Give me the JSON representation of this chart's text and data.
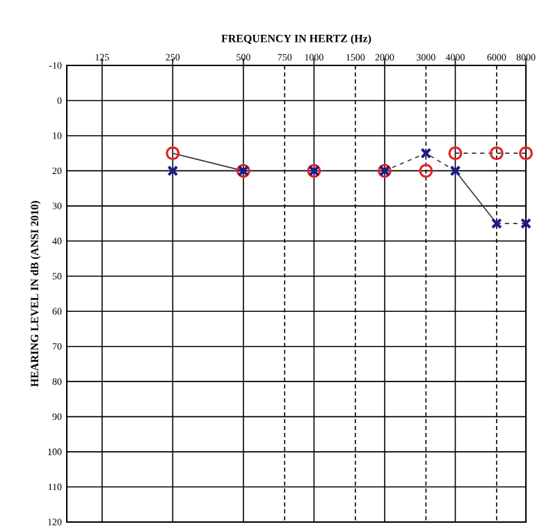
{
  "chart_data": {
    "type": "scatter",
    "xlabel": "FREQUENCY IN HERTZ (Hz)",
    "ylabel": "HEARING LEVEL IN dB (ANSI 2010)",
    "log": "x",
    "grid": true,
    "xlim": [
      88.4,
      8000
    ],
    "xticks": [
      125,
      250,
      500,
      750,
      1000,
      1500,
      2000,
      3000,
      4000,
      6000,
      8000
    ],
    "ylim": [
      120,
      -10
    ],
    "yticks": [
      -10,
      0,
      10,
      20,
      30,
      40,
      50,
      60,
      70,
      80,
      90,
      100,
      110,
      120
    ],
    "series": [
      {
        "color": "#e02424",
        "marker": "circle",
        "x": [
          250,
          500,
          1000,
          2000,
          3000,
          4000,
          6000,
          8000
        ],
        "values": [
          15,
          20,
          20,
          20,
          20,
          15,
          15,
          15
        ]
      },
      {
        "color": "#1c1c8c",
        "marker": "cross",
        "x": [
          250,
          500,
          1000,
          2000,
          3000,
          4000,
          6000,
          8000
        ],
        "values": [
          20,
          20,
          20,
          20,
          15,
          20,
          35,
          35
        ]
      },
      {
        "type": "line",
        "color": "#333333",
        "marker": "none",
        "line_style": "solid",
        "x": [
          250,
          500
        ],
        "values": [
          15,
          20
        ]
      },
      {
        "type": "line",
        "color": "#333333",
        "marker": "none",
        "line_style": "dashed",
        "x": [
          4000,
          6000,
          8000
        ],
        "values": [
          15,
          15,
          15
        ]
      },
      {
        "type": "line",
        "color": "#333333",
        "marker": "none",
        "line_style": "dashed",
        "x": [
          2000,
          3000,
          4000
        ],
        "values": [
          20,
          15,
          20
        ]
      },
      {
        "type": "line",
        "color": "#333333",
        "marker": "none",
        "line_style": "solid",
        "x": [
          4000,
          6000
        ],
        "values": [
          20,
          35
        ]
      },
      {
        "type": "line",
        "color": "#333333",
        "marker": "none",
        "line_style": "dashed",
        "x": [
          6000,
          8000
        ],
        "values": [
          35,
          35
        ]
      }
    ]
  }
}
